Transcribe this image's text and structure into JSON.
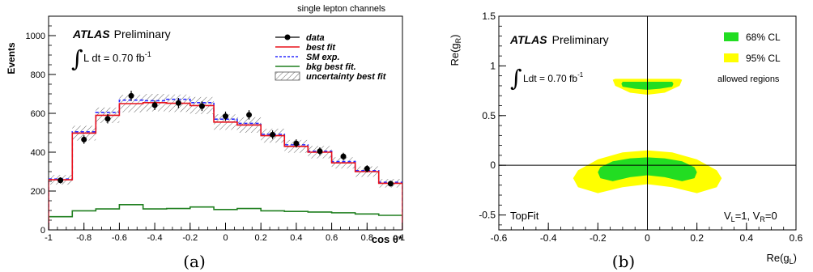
{
  "chart_data": [
    {
      "type": "line",
      "panel_label": "(a)",
      "top_label": "single lepton channels",
      "brand": "ATLAS",
      "brand_suffix": "Preliminary",
      "lumi": {
        "integral": "∫",
        "text": "L dt = 0.70 fb",
        "sup": "-1"
      },
      "xlabel": "cos θ*",
      "ylabel": "Events",
      "xlim": [
        -1,
        1
      ],
      "ylim": [
        0,
        1100
      ],
      "x_ticks": [
        -1,
        -0.8,
        -0.6,
        -0.4,
        -0.2,
        0,
        0.2,
        0.4,
        0.6,
        0.8,
        1
      ],
      "x_tick_labels": [
        "-1",
        "-0.8",
        "-0.6",
        "-0.4",
        "-0.2",
        "0",
        "0.2",
        "0.4",
        "0.6",
        "0.8",
        "1"
      ],
      "y_ticks": [
        0,
        200,
        400,
        600,
        800,
        1000
      ],
      "y_tick_labels": [
        "0",
        "200",
        "400",
        "600",
        "800",
        "1000"
      ],
      "bin_edges": [
        -1,
        -0.866,
        -0.733,
        -0.6,
        -0.466,
        -0.333,
        -0.2,
        -0.066,
        0.066,
        0.2,
        0.333,
        0.466,
        0.6,
        0.733,
        0.866,
        1
      ],
      "series": [
        {
          "name": "data",
          "style": "points",
          "color": "#000000",
          "x": [
            -0.933,
            -0.8,
            -0.666,
            -0.533,
            -0.4,
            -0.266,
            -0.133,
            0,
            0.133,
            0.266,
            0.4,
            0.533,
            0.666,
            0.8,
            0.933
          ],
          "values": [
            255,
            465,
            572,
            690,
            642,
            653,
            637,
            585,
            592,
            490,
            445,
            405,
            378,
            315,
            238
          ],
          "errors": [
            16,
            22,
            24,
            26,
            25,
            26,
            25,
            24,
            24,
            22,
            21,
            20,
            19,
            18,
            15
          ]
        },
        {
          "name": "best fit",
          "style": "step",
          "color": "#e8101a",
          "values": [
            258,
            498,
            590,
            650,
            655,
            652,
            640,
            555,
            540,
            485,
            430,
            400,
            345,
            300,
            240
          ]
        },
        {
          "name": "SM exp.",
          "style": "step-dashed",
          "color": "#2a2aff",
          "values": [
            262,
            505,
            605,
            668,
            665,
            672,
            655,
            570,
            548,
            492,
            438,
            405,
            352,
            305,
            245
          ]
        },
        {
          "name": "bkg best fit.",
          "style": "step",
          "color": "#1f7f1f",
          "values": [
            68,
            98,
            108,
            130,
            108,
            110,
            118,
            105,
            110,
            98,
            95,
            92,
            88,
            82,
            75
          ]
        },
        {
          "name": "uncertainty best fit",
          "style": "hatched-band",
          "color": "#555555",
          "half_width": [
            25,
            38,
            40,
            45,
            45,
            45,
            44,
            40,
            40,
            36,
            33,
            32,
            29,
            27,
            22
          ]
        }
      ]
    },
    {
      "type": "area",
      "panel_label": "(b)",
      "brand": "ATLAS",
      "brand_suffix": "Preliminary",
      "lumi": {
        "integral": "∫",
        "text": "Ldt = 0.70 fb",
        "sup": "-1"
      },
      "bottom_left_label": "TopFit",
      "bottom_right_label": "V",
      "bottom_right_parts": {
        "v1": "V",
        "s1": "L",
        "eq1": "=1, V",
        "s2": "R",
        "eq2": "=0"
      },
      "allowed_text": "allowed regions",
      "xlabel": {
        "main": "Re(g",
        "sub": "L",
        "close": ")"
      },
      "ylabel": {
        "main": "Re(g",
        "sub": "R",
        "close": ")"
      },
      "xlim": [
        -0.6,
        0.6
      ],
      "ylim": [
        -0.65,
        1.5
      ],
      "x_ticks": [
        -0.6,
        -0.4,
        -0.2,
        0,
        0.2,
        0.4,
        0.6
      ],
      "x_tick_labels": [
        "-0.6",
        "-0.4",
        "-0.2",
        "0",
        "0.2",
        "0.4",
        "0.6"
      ],
      "y_ticks": [
        -0.5,
        0,
        0.5,
        1,
        1.5
      ],
      "y_tick_labels": [
        "-0.5",
        "0",
        "0.5",
        "1",
        "1.5"
      ],
      "regions": [
        {
          "name": "95% CL",
          "color": "#ffff00",
          "lower_band": {
            "x": [
              -0.3,
              -0.28,
              -0.2,
              -0.1,
              0,
              0.1,
              0.2,
              0.28,
              0.3
            ],
            "top": [
              -0.13,
              -0.05,
              0.06,
              0.13,
              0.15,
              0.13,
              0.06,
              -0.05,
              -0.13
            ],
            "bottom": [
              -0.13,
              -0.22,
              -0.28,
              -0.22,
              -0.19,
              -0.22,
              -0.28,
              -0.22,
              -0.13
            ]
          },
          "upper_band": {
            "x": [
              -0.14,
              -0.13,
              -0.07,
              0,
              0.07,
              0.13,
              0.14
            ],
            "top": [
              0.86,
              0.87,
              0.87,
              0.87,
              0.87,
              0.87,
              0.86
            ],
            "bottom": [
              0.86,
              0.8,
              0.73,
              0.71,
              0.73,
              0.8,
              0.86
            ]
          }
        },
        {
          "name": "68% CL",
          "color": "#22dd22",
          "lower_band": {
            "x": [
              -0.2,
              -0.19,
              -0.14,
              -0.07,
              0,
              0.07,
              0.14,
              0.19,
              0.2
            ],
            "top": [
              -0.07,
              -0.02,
              0.04,
              0.07,
              0.08,
              0.07,
              0.04,
              -0.02,
              -0.07
            ],
            "bottom": [
              -0.07,
              -0.13,
              -0.16,
              -0.12,
              -0.1,
              -0.12,
              -0.16,
              -0.13,
              -0.07
            ]
          },
          "upper_band": {
            "x": [
              -0.105,
              -0.1,
              -0.05,
              0,
              0.05,
              0.1,
              0.105
            ],
            "top": [
              0.82,
              0.84,
              0.84,
              0.84,
              0.84,
              0.84,
              0.82
            ],
            "bottom": [
              0.82,
              0.79,
              0.77,
              0.76,
              0.77,
              0.79,
              0.82
            ]
          }
        }
      ]
    }
  ]
}
